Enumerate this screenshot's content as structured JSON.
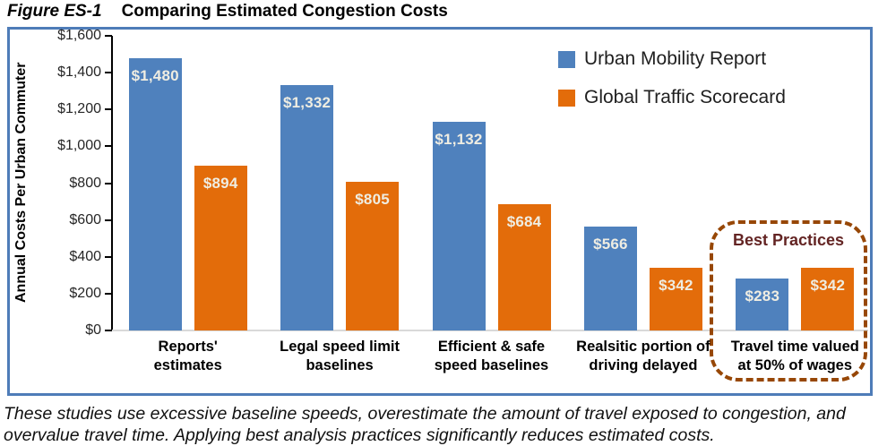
{
  "figure": {
    "label": "Figure ES-1",
    "title": "Comparing Estimated Congestion Costs"
  },
  "chart_data": {
    "type": "bar",
    "title": "Comparing Estimated Congestion Costs",
    "xlabel": "",
    "ylabel": "Annual Costs Per Urban Commuter",
    "ylim": [
      0,
      1600
    ],
    "grid": false,
    "legend_position": "upper-right-inside",
    "yticks": [
      {
        "value": 0,
        "label": "$0"
      },
      {
        "value": 200,
        "label": "$200"
      },
      {
        "value": 400,
        "label": "$400"
      },
      {
        "value": 600,
        "label": "$600"
      },
      {
        "value": 800,
        "label": "$800"
      },
      {
        "value": 1000,
        "label": "$1,000"
      },
      {
        "value": 1200,
        "label": "$1,200"
      },
      {
        "value": 1400,
        "label": "$1,400"
      },
      {
        "value": 1600,
        "label": "$1,600"
      }
    ],
    "categories": [
      {
        "lines": [
          "Reports'",
          "estimates"
        ]
      },
      {
        "lines": [
          "Legal speed limit",
          "baselines"
        ]
      },
      {
        "lines": [
          "Efficient & safe",
          "speed baselines"
        ]
      },
      {
        "lines": [
          "Realsitic portion of",
          "driving delayed"
        ]
      },
      {
        "lines": [
          "Travel time valued",
          "at 50% of wages"
        ]
      }
    ],
    "series": [
      {
        "name": "Urban Mobility Report",
        "color": "#4F81BD",
        "values": [
          1480,
          1332,
          1132,
          566,
          283
        ],
        "value_labels": [
          "$1,480",
          "$1,332",
          "$1,132",
          "$566",
          "$283"
        ]
      },
      {
        "name": "Global Traffic Scorecard",
        "color": "#E36C0A",
        "values": [
          894,
          805,
          684,
          342,
          342
        ],
        "value_labels": [
          "$894",
          "$805",
          "$684",
          "$342",
          "$342"
        ]
      }
    ],
    "annotation": {
      "label": "Best Practices",
      "box_color": "#974706",
      "label_color": "#632423",
      "applies_to_category": "Travel time valued at 50% of wages"
    }
  },
  "caption": {
    "lines": [
      "These studies use excessive baseline speeds, overestimate the amount of travel exposed to congestion, and",
      "overvalue travel time. Applying best analysis practices significantly reduces estimated costs."
    ]
  },
  "colors": {
    "frame_border": "#4e7cb8",
    "baseline": "#d9d9d9",
    "value_label": "#efede2"
  }
}
